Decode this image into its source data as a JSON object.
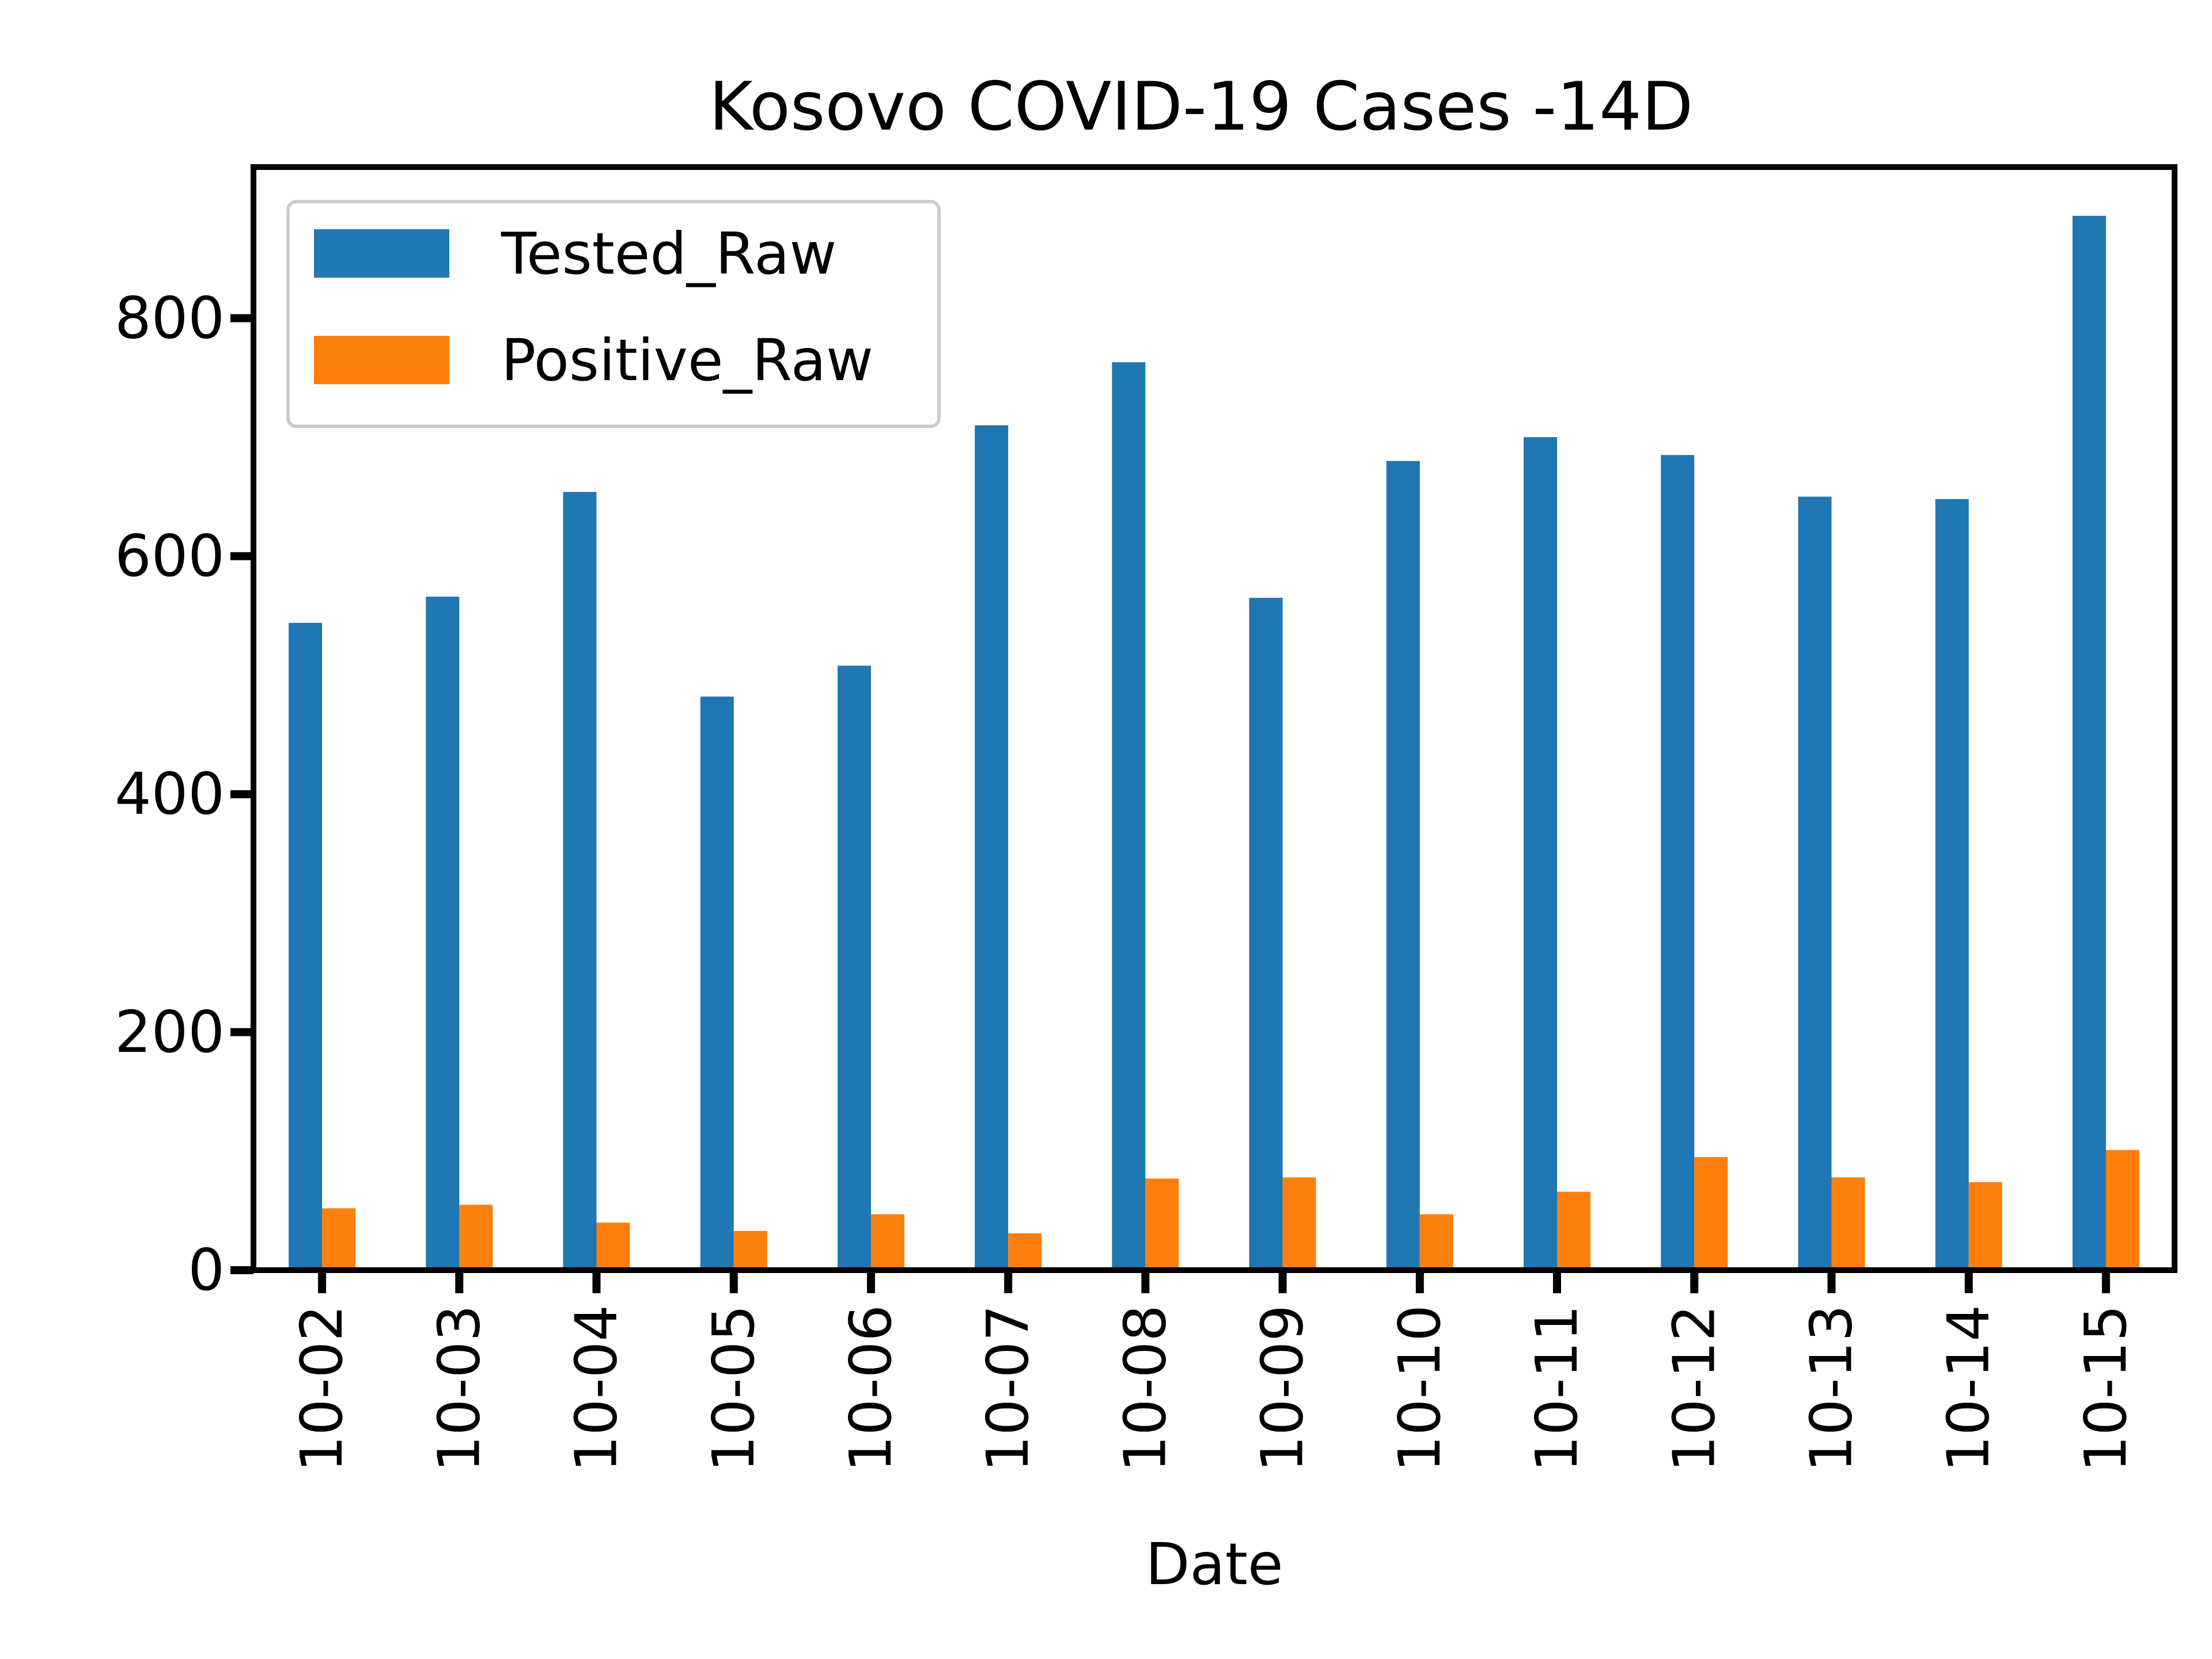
{
  "chart_data": {
    "type": "bar",
    "title": "Kosovo COVID-19 Cases -14D",
    "xlabel": "Date",
    "ylabel": "",
    "categories": [
      "10-02",
      "10-03",
      "10-04",
      "10-05",
      "10-06",
      "10-07",
      "10-08",
      "10-09",
      "10-10",
      "10-11",
      "10-12",
      "10-13",
      "10-14",
      "10-15"
    ],
    "series": [
      {
        "name": "Tested_Raw",
        "color": "#1f77b4",
        "values": [
          544,
          566,
          654,
          482,
          508,
          710,
          763,
          565,
          680,
          700,
          685,
          650,
          648,
          886
        ]
      },
      {
        "name": "Positive_Raw",
        "color": "#ff7f0e",
        "values": [
          52,
          55,
          40,
          33,
          47,
          31,
          77,
          78,
          47,
          66,
          95,
          78,
          74,
          101
        ]
      }
    ],
    "ylim": [
      0,
      927
    ],
    "yticks": [
      0,
      200,
      400,
      600,
      800
    ],
    "legend_position": "top-left",
    "grid": false
  }
}
